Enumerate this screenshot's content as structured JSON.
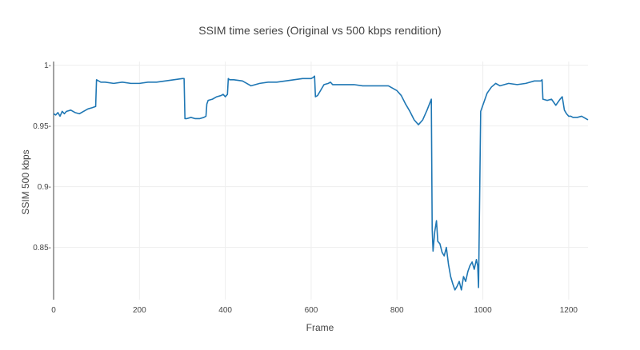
{
  "chart_data": {
    "type": "line",
    "title": "SSIM time series (Original vs 500 kbps rendition)",
    "xlabel": "Frame",
    "ylabel": "SSIM 500 kbps",
    "xlim": [
      0,
      1245
    ],
    "ylim": [
      0.807,
      1.003
    ],
    "xticks": [
      0,
      200,
      400,
      600,
      800,
      1000,
      1200
    ],
    "yticks": [
      0.85,
      0.9,
      0.95,
      1
    ],
    "ytick_labels": [
      "0.85",
      "0.9",
      "0.95",
      "1"
    ],
    "grid": true,
    "colors": {
      "series": "#1f77b4",
      "grid": "#eeeeee",
      "text": "#444444"
    },
    "series": [
      {
        "x": [
          0,
          5,
          10,
          15,
          20,
          25,
          30,
          40,
          50,
          60,
          70,
          80,
          90,
          98,
          100,
          105,
          110,
          120,
          140,
          160,
          180,
          200,
          220,
          240,
          260,
          280,
          300,
          304,
          306,
          310,
          320,
          330,
          340,
          350,
          355,
          357,
          360,
          370,
          380,
          390,
          395,
          400,
          405,
          407,
          410,
          420,
          440,
          460,
          480,
          500,
          520,
          540,
          560,
          580,
          600,
          605,
          608,
          610,
          615,
          620,
          630,
          640,
          645,
          650,
          660,
          680,
          700,
          720,
          740,
          760,
          780,
          800,
          810,
          820,
          830,
          840,
          850,
          860,
          870,
          880,
          882,
          884,
          888,
          892,
          895,
          900,
          905,
          910,
          915,
          920,
          925,
          930,
          935,
          940,
          945,
          950,
          955,
          960,
          965,
          970,
          975,
          980,
          985,
          988,
          990,
          995,
          1000,
          1010,
          1020,
          1030,
          1040,
          1060,
          1080,
          1100,
          1120,
          1135,
          1138,
          1140,
          1150,
          1160,
          1170,
          1180,
          1185,
          1190,
          1195,
          1200,
          1205,
          1210,
          1220,
          1230,
          1240,
          1245
        ],
        "y": [
          0.96,
          0.959,
          0.961,
          0.958,
          0.962,
          0.96,
          0.962,
          0.963,
          0.961,
          0.96,
          0.962,
          0.964,
          0.965,
          0.966,
          0.988,
          0.987,
          0.986,
          0.986,
          0.985,
          0.986,
          0.985,
          0.985,
          0.986,
          0.986,
          0.987,
          0.988,
          0.989,
          0.989,
          0.956,
          0.956,
          0.957,
          0.956,
          0.956,
          0.957,
          0.958,
          0.968,
          0.971,
          0.972,
          0.974,
          0.975,
          0.976,
          0.974,
          0.976,
          0.989,
          0.988,
          0.988,
          0.987,
          0.983,
          0.985,
          0.986,
          0.986,
          0.987,
          0.988,
          0.989,
          0.989,
          0.99,
          0.991,
          0.974,
          0.975,
          0.978,
          0.984,
          0.985,
          0.986,
          0.984,
          0.984,
          0.984,
          0.984,
          0.983,
          0.983,
          0.983,
          0.983,
          0.979,
          0.975,
          0.968,
          0.962,
          0.955,
          0.951,
          0.955,
          0.963,
          0.972,
          0.865,
          0.847,
          0.863,
          0.872,
          0.855,
          0.853,
          0.846,
          0.843,
          0.85,
          0.836,
          0.826,
          0.82,
          0.815,
          0.818,
          0.822,
          0.815,
          0.826,
          0.822,
          0.83,
          0.835,
          0.838,
          0.832,
          0.84,
          0.835,
          0.817,
          0.962,
          0.967,
          0.977,
          0.982,
          0.985,
          0.983,
          0.985,
          0.984,
          0.985,
          0.987,
          0.987,
          0.988,
          0.972,
          0.971,
          0.972,
          0.967,
          0.972,
          0.974,
          0.963,
          0.96,
          0.958,
          0.958,
          0.957,
          0.957,
          0.958,
          0.956,
          0.955
        ]
      }
    ]
  }
}
